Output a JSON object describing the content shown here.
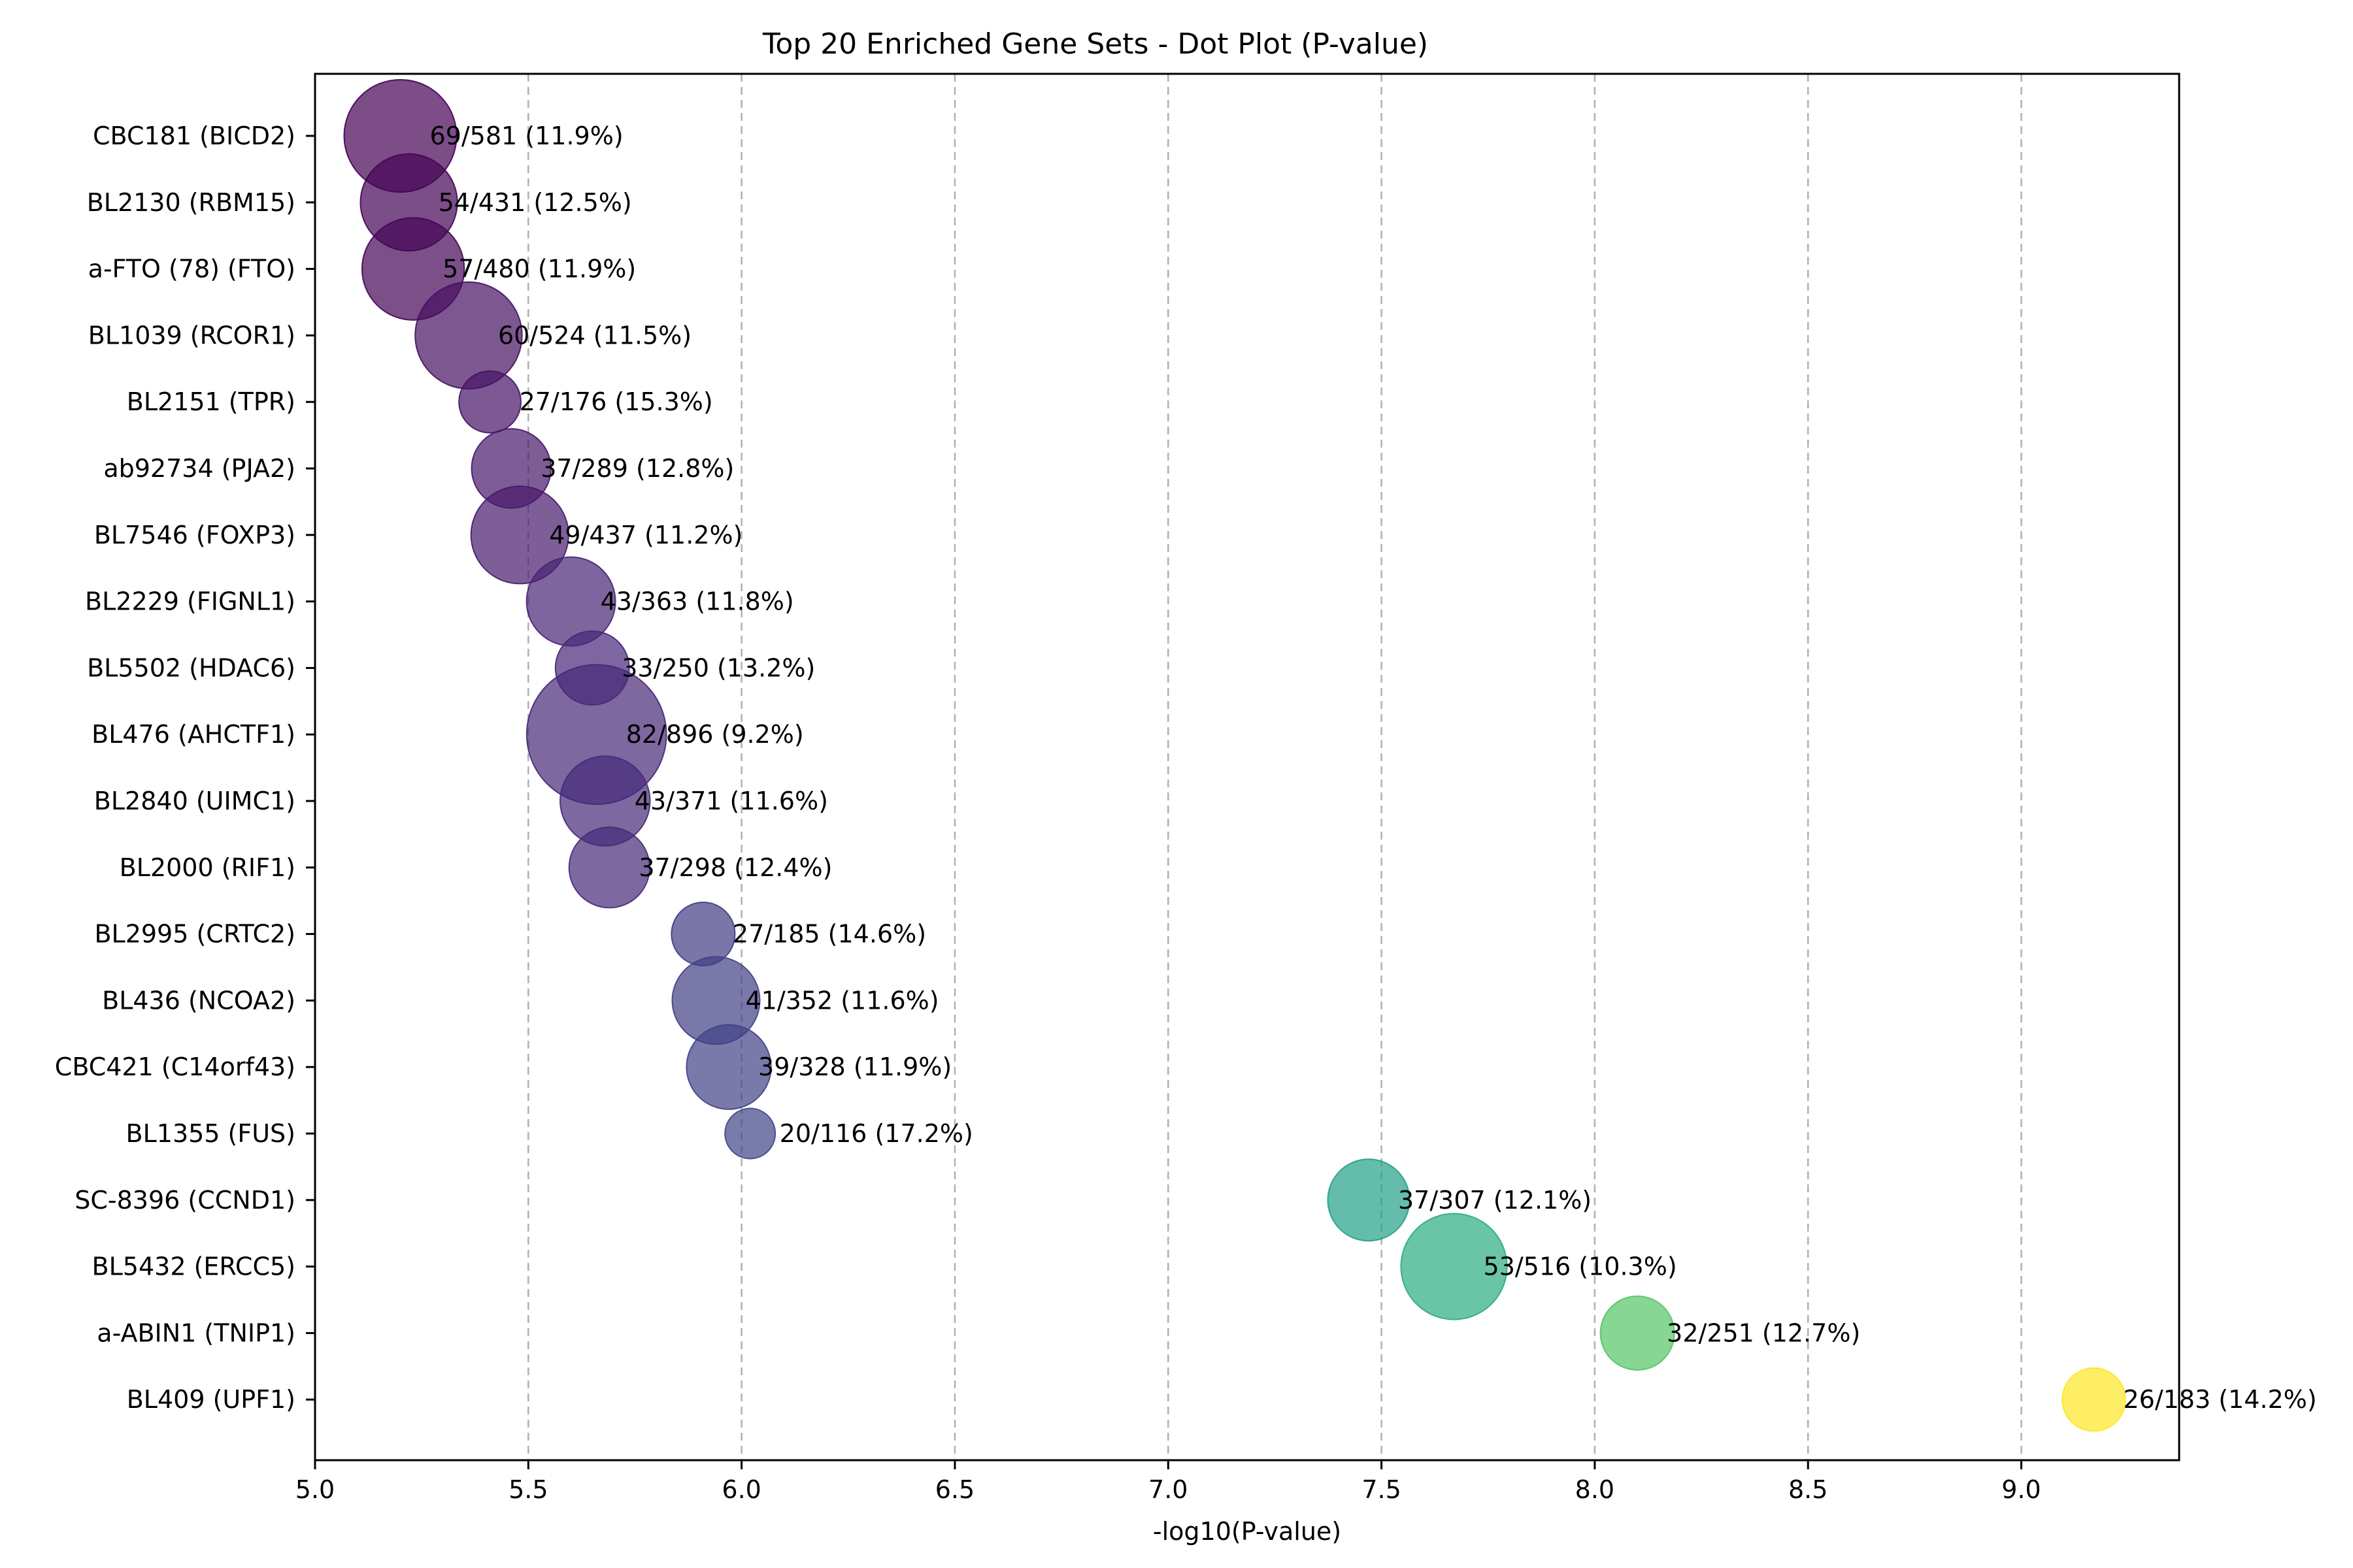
{
  "chart_data": {
    "type": "scatter",
    "title": "Top 20 Enriched Gene Sets - Dot Plot (P-value)",
    "xlabel": "-log10(P-value)",
    "ylabel": "",
    "xlim": [
      5.0,
      9.37
    ],
    "xticks": [
      "5.0",
      "5.5",
      "6.0",
      "6.5",
      "7.0",
      "7.5",
      "8.0",
      "8.5",
      "9.0"
    ],
    "grid": "x-dashed",
    "colormap": "viridis",
    "color_range": [
      5.2,
      9.17
    ],
    "categories": [
      "CBC181 (BICD2)",
      "BL2130 (RBM15)",
      "a-FTO (78) (FTO)",
      "BL1039 (RCOR1)",
      "BL2151 (TPR)",
      "ab92734 (PJA2)",
      "BL7546 (FOXP3)",
      "BL2229 (FIGNL1)",
      "BL5502 (HDAC6)",
      "BL476 (AHCTF1)",
      "BL2840 (UIMC1)",
      "BL2000 (RIF1)",
      "BL2995 (CRTC2)",
      "BL436 (NCOA2)",
      "CBC421 (C14orf43)",
      "BL1355 (FUS)",
      "SC-8396 (CCND1)",
      "BL5432 (ERCC5)",
      "a-ABIN1 (TNIP1)",
      "BL409 (UPF1)"
    ],
    "points": [
      {
        "label": "CBC181 (BICD2)",
        "x": 5.2,
        "overlap": 69,
        "size": 581,
        "annotation": "69/581 (11.9%)"
      },
      {
        "label": "BL2130 (RBM15)",
        "x": 5.22,
        "overlap": 54,
        "size": 431,
        "annotation": "54/431 (12.5%)"
      },
      {
        "label": "a-FTO (78) (FTO)",
        "x": 5.23,
        "overlap": 57,
        "size": 480,
        "annotation": "57/480 (11.9%)"
      },
      {
        "label": "BL1039 (RCOR1)",
        "x": 5.36,
        "overlap": 60,
        "size": 524,
        "annotation": "60/524 (11.5%)"
      },
      {
        "label": "BL2151 (TPR)",
        "x": 5.41,
        "overlap": 27,
        "size": 176,
        "annotation": "27/176 (15.3%)"
      },
      {
        "label": "ab92734 (PJA2)",
        "x": 5.46,
        "overlap": 37,
        "size": 289,
        "annotation": "37/289 (12.8%)"
      },
      {
        "label": "BL7546 (FOXP3)",
        "x": 5.48,
        "overlap": 49,
        "size": 437,
        "annotation": "49/437 (11.2%)"
      },
      {
        "label": "BL2229 (FIGNL1)",
        "x": 5.6,
        "overlap": 43,
        "size": 363,
        "annotation": "43/363 (11.8%)"
      },
      {
        "label": "BL5502 (HDAC6)",
        "x": 5.65,
        "overlap": 33,
        "size": 250,
        "annotation": "33/250 (13.2%)"
      },
      {
        "label": "BL476 (AHCTF1)",
        "x": 5.66,
        "overlap": 82,
        "size": 896,
        "annotation": "82/896 (9.2%)"
      },
      {
        "label": "BL2840 (UIMC1)",
        "x": 5.68,
        "overlap": 43,
        "size": 371,
        "annotation": "43/371 (11.6%)"
      },
      {
        "label": "BL2000 (RIF1)",
        "x": 5.69,
        "overlap": 37,
        "size": 298,
        "annotation": "37/298 (12.4%)"
      },
      {
        "label": "BL2995 (CRTC2)",
        "x": 5.91,
        "overlap": 27,
        "size": 185,
        "annotation": "27/185 (14.6%)"
      },
      {
        "label": "BL436 (NCOA2)",
        "x": 5.94,
        "overlap": 41,
        "size": 352,
        "annotation": "41/352 (11.6%)"
      },
      {
        "label": "CBC421 (C14orf43)",
        "x": 5.97,
        "overlap": 39,
        "size": 328,
        "annotation": "39/328 (11.9%)"
      },
      {
        "label": "BL1355 (FUS)",
        "x": 6.02,
        "overlap": 20,
        "size": 116,
        "annotation": "20/116 (17.2%)"
      },
      {
        "label": "SC-8396 (CCND1)",
        "x": 7.47,
        "overlap": 37,
        "size": 307,
        "annotation": "37/307 (12.1%)"
      },
      {
        "label": "BL5432 (ERCC5)",
        "x": 7.67,
        "overlap": 53,
        "size": 516,
        "annotation": "53/516 (10.3%)"
      },
      {
        "label": "a-ABIN1 (TNIP1)",
        "x": 8.1,
        "overlap": 32,
        "size": 251,
        "annotation": "32/251 (12.7%)"
      },
      {
        "label": "BL409 (UPF1)",
        "x": 9.17,
        "overlap": 26,
        "size": 183,
        "annotation": "26/183 (14.2%)"
      }
    ]
  }
}
